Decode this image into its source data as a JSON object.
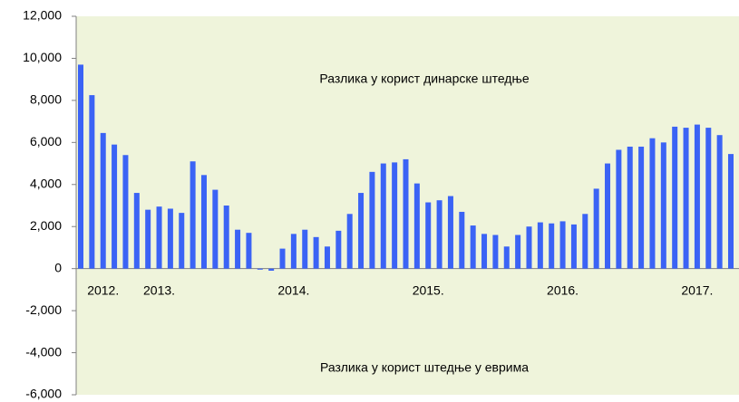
{
  "chart_data": {
    "type": "bar",
    "annotations": [
      "Разлика у корист динарске штедње",
      "Разлика у корист штедње у еврима"
    ],
    "categories": [
      null,
      null,
      "2012.",
      null,
      null,
      null,
      null,
      "2013.",
      null,
      null,
      null,
      null,
      null,
      null,
      null,
      null,
      null,
      null,
      null,
      "2014.",
      null,
      null,
      null,
      null,
      null,
      null,
      null,
      null,
      null,
      null,
      null,
      "2015.",
      null,
      null,
      null,
      null,
      null,
      null,
      null,
      null,
      null,
      null,
      null,
      "2016.",
      null,
      null,
      null,
      null,
      null,
      null,
      null,
      null,
      null,
      null,
      null,
      "2017.",
      null,
      null,
      null
    ],
    "values": [
      9700,
      8250,
      6450,
      5900,
      5400,
      3600,
      2800,
      2950,
      2850,
      2650,
      5100,
      4450,
      3750,
      3000,
      1850,
      1700,
      -50,
      -100,
      950,
      1650,
      1850,
      1500,
      1050,
      1800,
      2600,
      3600,
      4600,
      5000,
      5050,
      5200,
      4050,
      3150,
      3250,
      3450,
      2700,
      2050,
      1650,
      1600,
      1050,
      1600,
      2000,
      2200,
      2150,
      2250,
      2100,
      2600,
      3800,
      5000,
      5650,
      5800,
      5800,
      6200,
      6000,
      6750,
      6700,
      6850,
      6700,
      6350,
      5450
    ],
    "color": "#3b63f5",
    "ylim": [
      -6000,
      12000
    ],
    "yticks": [
      {
        "value": -6000,
        "label": "-6,000"
      },
      {
        "value": -4000,
        "label": "-4,000"
      },
      {
        "value": -2000,
        "label": "-2,000"
      },
      0,
      {
        "value": 2000,
        "label": "2,000"
      },
      {
        "value": 4000,
        "label": "4,000"
      },
      {
        "value": 6000,
        "label": "6,000"
      },
      {
        "value": 8000,
        "label": "8,000"
      },
      {
        "value": 10000,
        "label": "10,000"
      },
      {
        "value": 12000,
        "label": "12,000"
      }
    ],
    "grid": false
  }
}
